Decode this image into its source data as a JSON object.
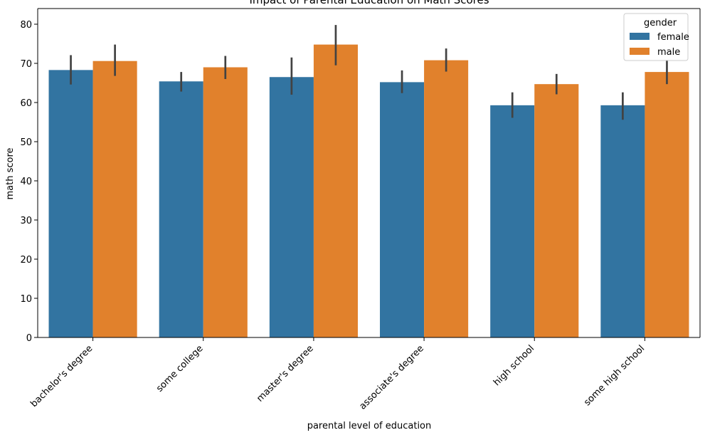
{
  "chart_data": {
    "type": "bar",
    "title": "Impact of Parental Education on Math Scores",
    "xlabel": "parental level of education",
    "ylabel": "math score",
    "ylim": [
      0,
      84
    ],
    "yticks": [
      0,
      10,
      20,
      30,
      40,
      50,
      60,
      70,
      80
    ],
    "categories": [
      "bachelor's degree",
      "some college",
      "master's degree",
      "associate's degree",
      "high school",
      "some high school"
    ],
    "series": [
      {
        "name": "female",
        "color": "#3274a1",
        "values": [
          68.3,
          65.4,
          66.5,
          65.2,
          59.3,
          59.3
        ],
        "ci_low": [
          64.6,
          62.8,
          62.0,
          62.4,
          56.1,
          55.6
        ],
        "ci_high": [
          72.1,
          67.8,
          71.5,
          68.2,
          62.6,
          62.6
        ]
      },
      {
        "name": "male",
        "color": "#e1812c",
        "values": [
          70.6,
          69.0,
          74.8,
          70.8,
          64.7,
          67.8
        ],
        "ci_low": [
          66.8,
          66.0,
          69.5,
          67.9,
          62.1,
          64.7
        ],
        "ci_high": [
          74.8,
          71.9,
          79.8,
          73.8,
          67.3,
          70.9
        ]
      }
    ],
    "legend": {
      "title": "gender",
      "position": "top-right"
    },
    "grid": false
  }
}
